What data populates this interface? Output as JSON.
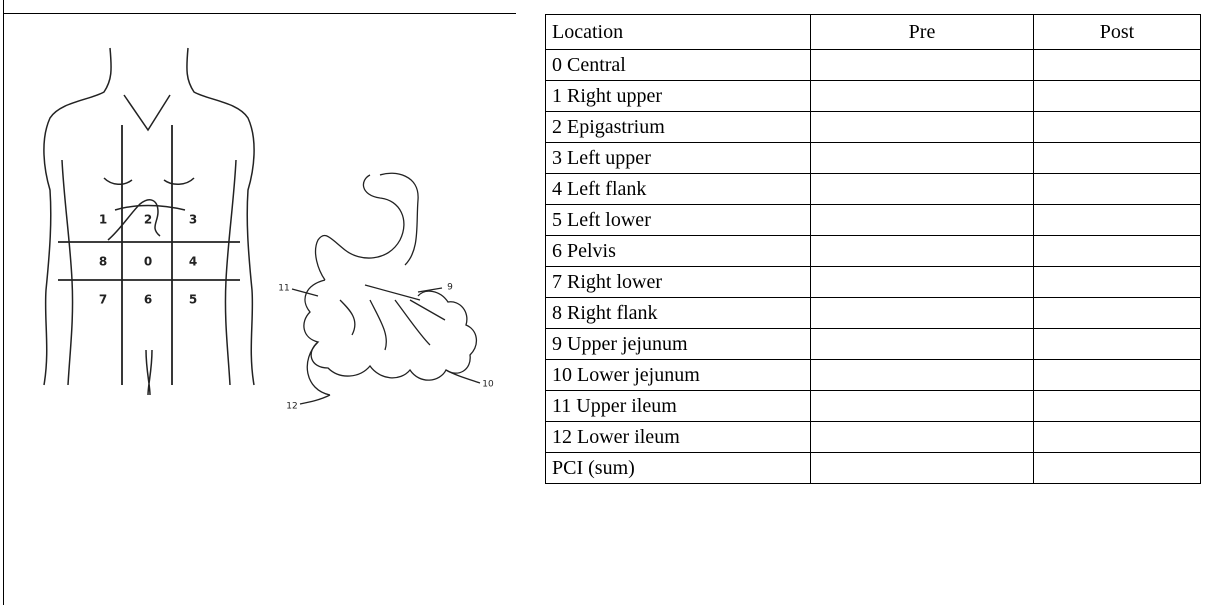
{
  "figure": {
    "regions": [
      "1",
      "2",
      "3",
      "8",
      "0",
      "4",
      "7",
      "6",
      "5"
    ],
    "bowel": [
      "11",
      "9",
      "12",
      "10"
    ]
  },
  "table": {
    "header": [
      "Location",
      "Pre",
      "Post"
    ],
    "rows": [
      "0 Central",
      "1 Right upper",
      "2 Epigastrium",
      "3 Left upper",
      "4 Left flank",
      "5 Left lower",
      "6 Pelvis",
      "7 Right lower",
      "8 Right flank",
      "9 Upper jejunum",
      "10 Lower jejunum",
      "11 Upper ileum",
      "12 Lower ileum",
      "PCI (sum)"
    ]
  }
}
